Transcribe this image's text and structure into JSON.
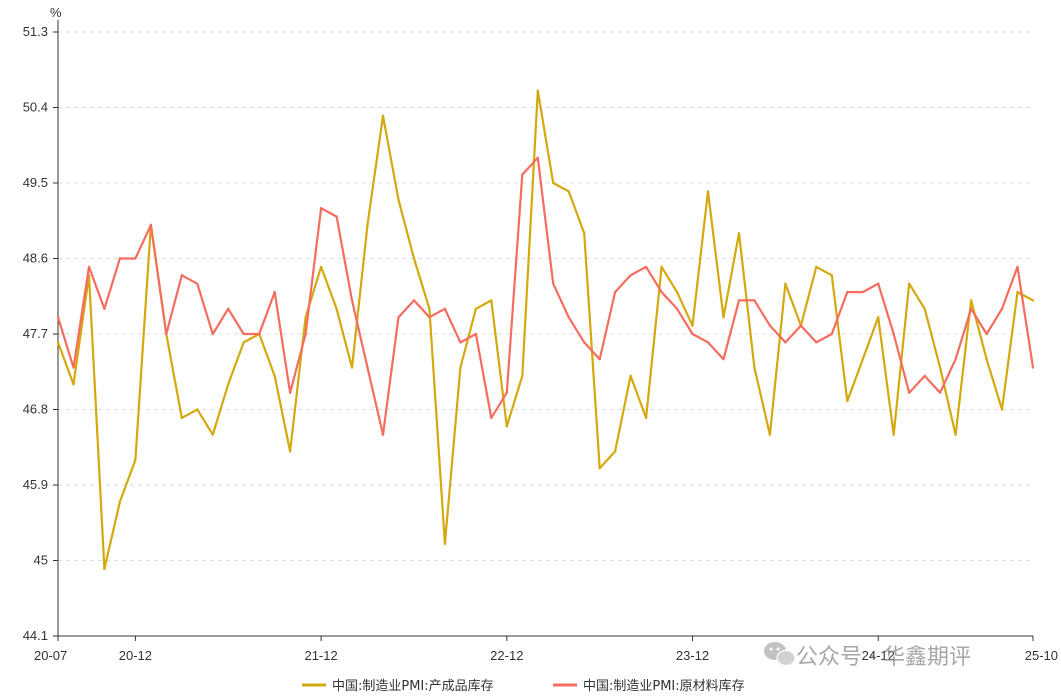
{
  "chart_data": {
    "type": "line",
    "y_unit": "%",
    "ylim": [
      44.1,
      51.3
    ],
    "y_ticks": [
      44.1,
      45,
      45.9,
      46.8,
      47.7,
      48.6,
      49.5,
      50.4,
      51.3
    ],
    "grid": "horizontal dashed",
    "legend_position": "bottom",
    "x": [
      "2020-07",
      "2020-08",
      "2020-09",
      "2020-10",
      "2020-11",
      "2020-12",
      "2021-01",
      "2021-02",
      "2021-03",
      "2021-04",
      "2021-05",
      "2021-06",
      "2021-07",
      "2021-08",
      "2021-09",
      "2021-10",
      "2021-11",
      "2021-12",
      "2022-01",
      "2022-02",
      "2022-03",
      "2022-04",
      "2022-05",
      "2022-06",
      "2022-07",
      "2022-08",
      "2022-09",
      "2022-10",
      "2022-11",
      "2022-12",
      "2023-01",
      "2023-02",
      "2023-03",
      "2023-04",
      "2023-05",
      "2023-06",
      "2023-07",
      "2023-08",
      "2023-09",
      "2023-10",
      "2023-11",
      "2023-12",
      "2024-01",
      "2024-02",
      "2024-03",
      "2024-04",
      "2024-05",
      "2024-06",
      "2024-07",
      "2024-08",
      "2024-09",
      "2024-10",
      "2024-11",
      "2024-12",
      "2025-01",
      "2025-02",
      "2025-03",
      "2025-04",
      "2025-05",
      "2025-06",
      "2025-07",
      "2025-08",
      "2025-09",
      "2025-10"
    ],
    "x_tick_labels": [
      {
        "index": 0,
        "label": "20-07"
      },
      {
        "index": 5,
        "label": "20-12"
      },
      {
        "index": 17,
        "label": "21-12"
      },
      {
        "index": 29,
        "label": "22-12"
      },
      {
        "index": 41,
        "label": "23-12"
      },
      {
        "index": 53,
        "label": "24-12"
      },
      {
        "index": 63,
        "label": "25-10"
      }
    ],
    "series": [
      {
        "name": "中国:制造业PMI:产成品库存",
        "color": "#D4A90F",
        "values": [
          47.6,
          47.1,
          48.4,
          44.9,
          45.7,
          46.2,
          49.0,
          47.7,
          46.7,
          46.8,
          46.5,
          47.1,
          47.6,
          47.7,
          47.2,
          46.3,
          47.9,
          48.5,
          48.0,
          47.3,
          49.0,
          50.3,
          49.3,
          48.6,
          48.0,
          45.2,
          47.3,
          48.0,
          48.1,
          46.6,
          47.2,
          50.6,
          49.5,
          49.4,
          48.9,
          46.1,
          46.3,
          47.2,
          46.7,
          48.5,
          48.2,
          47.8,
          49.4,
          47.9,
          48.9,
          47.3,
          46.5,
          48.3,
          47.8,
          48.5,
          48.4,
          46.9,
          47.4,
          47.9,
          46.5,
          48.3,
          48.0,
          47.3,
          46.5,
          48.1,
          47.4,
          46.8,
          48.2,
          48.1
        ]
      },
      {
        "name": "中国:制造业PMI:原材料库存",
        "color": "#F46D5E",
        "values": [
          47.9,
          47.3,
          48.5,
          48.0,
          48.6,
          48.6,
          49.0,
          47.7,
          48.4,
          48.3,
          47.7,
          48.0,
          47.7,
          47.7,
          48.2,
          47.0,
          47.7,
          49.2,
          49.1,
          48.1,
          47.3,
          46.5,
          47.9,
          48.1,
          47.9,
          48.0,
          47.6,
          47.7,
          46.7,
          47.0,
          49.6,
          49.8,
          48.3,
          47.9,
          47.6,
          47.4,
          48.2,
          48.4,
          48.5,
          48.2,
          48.0,
          47.7,
          47.6,
          47.4,
          48.1,
          48.1,
          47.8,
          47.6,
          47.8,
          47.6,
          47.7,
          48.2,
          48.2,
          48.3,
          47.7,
          47.0,
          47.2,
          47.0,
          47.4,
          48.0,
          47.7,
          48.0,
          48.5,
          47.3
        ]
      }
    ]
  },
  "watermark": {
    "icon": "wechat-icon",
    "text": "公众号 · 华鑫期评"
  }
}
